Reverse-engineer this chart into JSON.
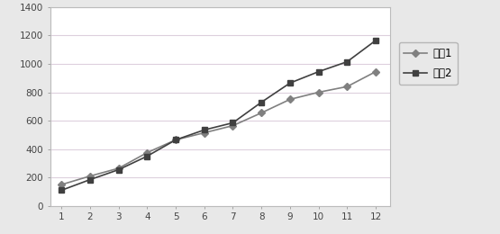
{
  "x": [
    1,
    2,
    3,
    4,
    5,
    6,
    7,
    8,
    9,
    10,
    11,
    12
  ],
  "series1": [
    150,
    210,
    265,
    375,
    465,
    515,
    565,
    655,
    750,
    800,
    840,
    945
  ],
  "series2": [
    110,
    185,
    255,
    350,
    465,
    535,
    585,
    730,
    865,
    945,
    1015,
    1165
  ],
  "series1_label": "系列1",
  "series2_label": "系列2",
  "series1_color": "#808080",
  "series2_color": "#404040",
  "ylim": [
    0,
    1400
  ],
  "xlim": [
    0.6,
    12.5
  ],
  "yticks": [
    0,
    200,
    400,
    600,
    800,
    1000,
    1200,
    1400
  ],
  "xticks": [
    1,
    2,
    3,
    4,
    5,
    6,
    7,
    8,
    9,
    10,
    11,
    12
  ],
  "background_color": "#e8e8e8",
  "plot_bg_color": "#ffffff",
  "grid_color": "#ddd0dd",
  "legend_fontsize": 8.5,
  "tick_fontsize": 7.5,
  "linewidth": 1.2,
  "markersize": 4.5
}
